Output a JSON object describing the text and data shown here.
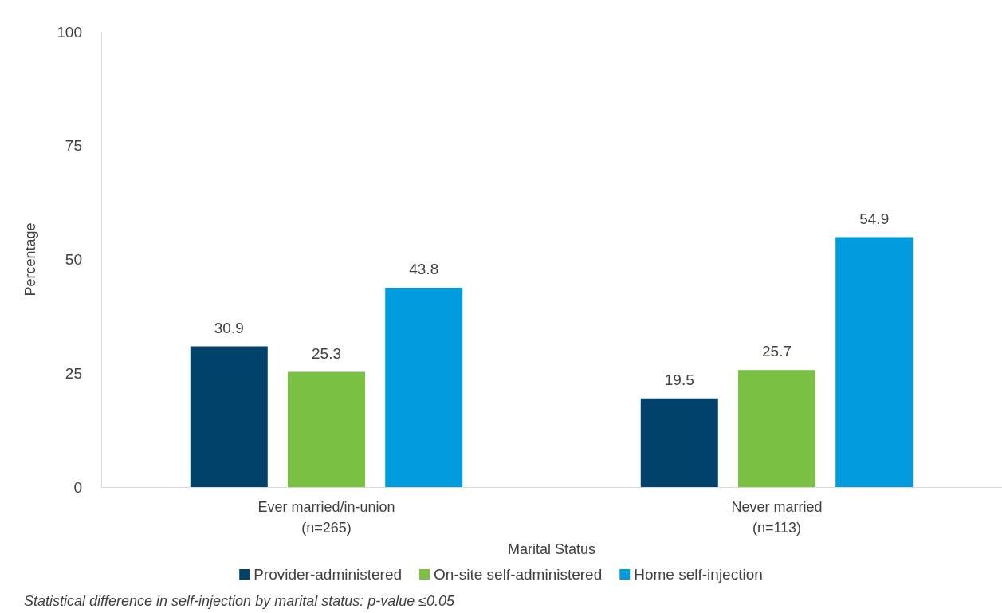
{
  "chart_data": {
    "type": "bar",
    "categories": [
      "Ever married/in-union\n(n=265)",
      "Never married\n(n=113)"
    ],
    "xlabel": "Marital Status",
    "ylabel": "Percentage",
    "series": [
      {
        "name": "Provider-administered",
        "color": "#00426a",
        "values": [
          30.9,
          19.5
        ]
      },
      {
        "name": "On-site self-administered",
        "color": "#7ac143",
        "values": [
          25.3,
          25.7
        ]
      },
      {
        "name": "Home self-injection",
        "color": "#009cde",
        "values": [
          43.8,
          54.9
        ]
      }
    ],
    "ylim": [
      0,
      100
    ],
    "yticks": [
      0,
      25,
      50,
      75,
      100
    ],
    "grid": false,
    "legend": "bottom",
    "data_labels": true,
    "annotations": [
      "Statistical difference in self-injection by marital status: p-value ≤0.05"
    ]
  }
}
